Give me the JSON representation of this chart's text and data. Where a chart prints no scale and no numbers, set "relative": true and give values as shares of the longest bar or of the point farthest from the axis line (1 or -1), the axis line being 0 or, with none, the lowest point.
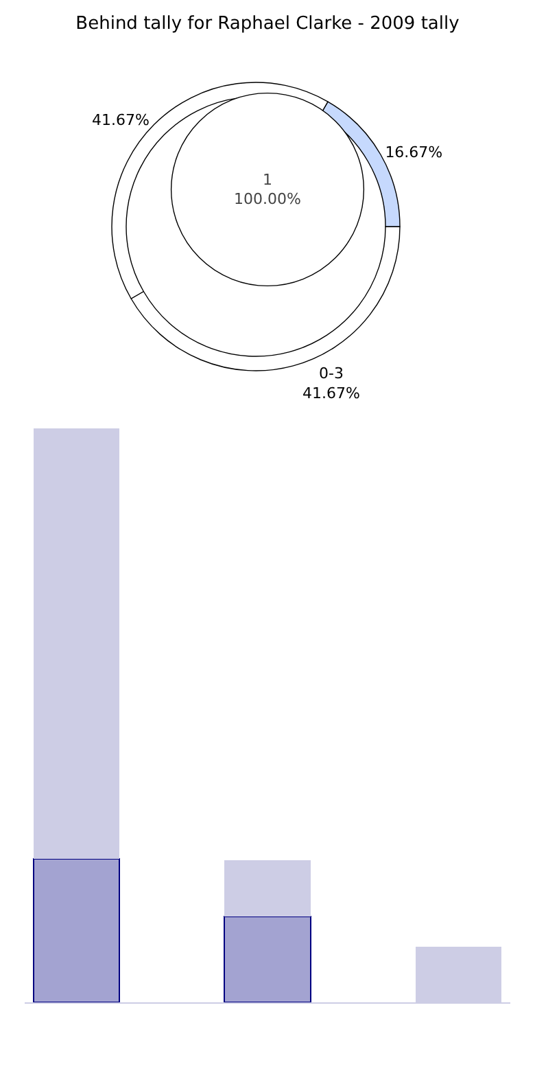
{
  "chart_data": [
    {
      "type": "donut",
      "title": "Behind tally for Raphael Clarke - 2009 tally",
      "categories": [
        "0-3",
        null,
        null
      ],
      "values": [
        41.67,
        16.67,
        41.67
      ],
      "value_labels": [
        "41.67%",
        "16.67%",
        "41.67%"
      ],
      "colors": [
        "#ffffff",
        "#c6d9fd",
        "#ffffff"
      ]
    },
    {
      "type": "pie",
      "categories": [
        "1"
      ],
      "values": [
        100
      ],
      "value_labels": [
        "100.00%"
      ],
      "colors": [
        "#ffffff"
      ]
    },
    {
      "type": "bar",
      "relative": true,
      "stacked": true,
      "categories": [
        null,
        null,
        null
      ],
      "series": [
        {
          "color": "#a3a3d1",
          "values": [
            0.25,
            0.15,
            null
          ]
        },
        {
          "color": "#cdcde5",
          "values": [
            0.75,
            0.098,
            0.097
          ]
        }
      ]
    }
  ]
}
